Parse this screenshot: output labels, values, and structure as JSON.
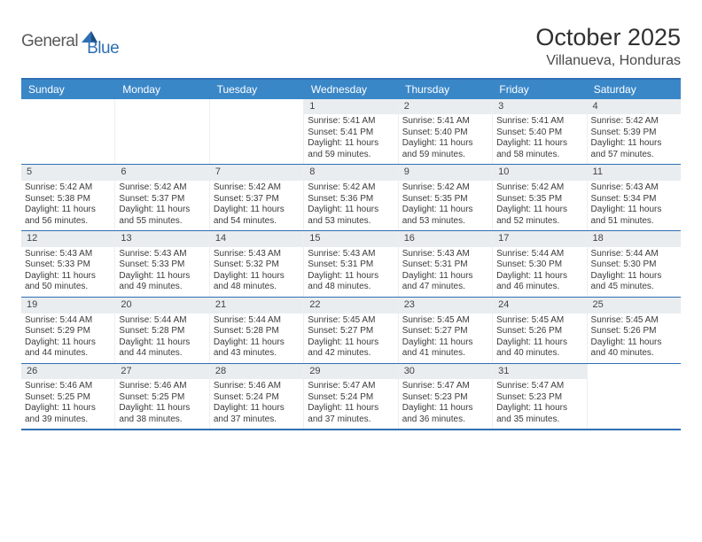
{
  "logo": {
    "general": "General",
    "blue": "Blue"
  },
  "title": "October 2025",
  "location": "Villanueva, Honduras",
  "colors": {
    "header_bar": "#3a87c8",
    "border": "#2f6fb3",
    "daynum_bg": "#e9edef",
    "text": "#3b3b3b",
    "title_text": "#303030"
  },
  "daysOfWeek": [
    "Sunday",
    "Monday",
    "Tuesday",
    "Wednesday",
    "Thursday",
    "Friday",
    "Saturday"
  ],
  "weeks": [
    [
      null,
      null,
      null,
      {
        "n": "1",
        "sunrise": "Sunrise: 5:41 AM",
        "sunset": "Sunset: 5:41 PM",
        "daylight": "Daylight: 11 hours and 59 minutes."
      },
      {
        "n": "2",
        "sunrise": "Sunrise: 5:41 AM",
        "sunset": "Sunset: 5:40 PM",
        "daylight": "Daylight: 11 hours and 59 minutes."
      },
      {
        "n": "3",
        "sunrise": "Sunrise: 5:41 AM",
        "sunset": "Sunset: 5:40 PM",
        "daylight": "Daylight: 11 hours and 58 minutes."
      },
      {
        "n": "4",
        "sunrise": "Sunrise: 5:42 AM",
        "sunset": "Sunset: 5:39 PM",
        "daylight": "Daylight: 11 hours and 57 minutes."
      }
    ],
    [
      {
        "n": "5",
        "sunrise": "Sunrise: 5:42 AM",
        "sunset": "Sunset: 5:38 PM",
        "daylight": "Daylight: 11 hours and 56 minutes."
      },
      {
        "n": "6",
        "sunrise": "Sunrise: 5:42 AM",
        "sunset": "Sunset: 5:37 PM",
        "daylight": "Daylight: 11 hours and 55 minutes."
      },
      {
        "n": "7",
        "sunrise": "Sunrise: 5:42 AM",
        "sunset": "Sunset: 5:37 PM",
        "daylight": "Daylight: 11 hours and 54 minutes."
      },
      {
        "n": "8",
        "sunrise": "Sunrise: 5:42 AM",
        "sunset": "Sunset: 5:36 PM",
        "daylight": "Daylight: 11 hours and 53 minutes."
      },
      {
        "n": "9",
        "sunrise": "Sunrise: 5:42 AM",
        "sunset": "Sunset: 5:35 PM",
        "daylight": "Daylight: 11 hours and 53 minutes."
      },
      {
        "n": "10",
        "sunrise": "Sunrise: 5:42 AM",
        "sunset": "Sunset: 5:35 PM",
        "daylight": "Daylight: 11 hours and 52 minutes."
      },
      {
        "n": "11",
        "sunrise": "Sunrise: 5:43 AM",
        "sunset": "Sunset: 5:34 PM",
        "daylight": "Daylight: 11 hours and 51 minutes."
      }
    ],
    [
      {
        "n": "12",
        "sunrise": "Sunrise: 5:43 AM",
        "sunset": "Sunset: 5:33 PM",
        "daylight": "Daylight: 11 hours and 50 minutes."
      },
      {
        "n": "13",
        "sunrise": "Sunrise: 5:43 AM",
        "sunset": "Sunset: 5:33 PM",
        "daylight": "Daylight: 11 hours and 49 minutes."
      },
      {
        "n": "14",
        "sunrise": "Sunrise: 5:43 AM",
        "sunset": "Sunset: 5:32 PM",
        "daylight": "Daylight: 11 hours and 48 minutes."
      },
      {
        "n": "15",
        "sunrise": "Sunrise: 5:43 AM",
        "sunset": "Sunset: 5:31 PM",
        "daylight": "Daylight: 11 hours and 48 minutes."
      },
      {
        "n": "16",
        "sunrise": "Sunrise: 5:43 AM",
        "sunset": "Sunset: 5:31 PM",
        "daylight": "Daylight: 11 hours and 47 minutes."
      },
      {
        "n": "17",
        "sunrise": "Sunrise: 5:44 AM",
        "sunset": "Sunset: 5:30 PM",
        "daylight": "Daylight: 11 hours and 46 minutes."
      },
      {
        "n": "18",
        "sunrise": "Sunrise: 5:44 AM",
        "sunset": "Sunset: 5:30 PM",
        "daylight": "Daylight: 11 hours and 45 minutes."
      }
    ],
    [
      {
        "n": "19",
        "sunrise": "Sunrise: 5:44 AM",
        "sunset": "Sunset: 5:29 PM",
        "daylight": "Daylight: 11 hours and 44 minutes."
      },
      {
        "n": "20",
        "sunrise": "Sunrise: 5:44 AM",
        "sunset": "Sunset: 5:28 PM",
        "daylight": "Daylight: 11 hours and 44 minutes."
      },
      {
        "n": "21",
        "sunrise": "Sunrise: 5:44 AM",
        "sunset": "Sunset: 5:28 PM",
        "daylight": "Daylight: 11 hours and 43 minutes."
      },
      {
        "n": "22",
        "sunrise": "Sunrise: 5:45 AM",
        "sunset": "Sunset: 5:27 PM",
        "daylight": "Daylight: 11 hours and 42 minutes."
      },
      {
        "n": "23",
        "sunrise": "Sunrise: 5:45 AM",
        "sunset": "Sunset: 5:27 PM",
        "daylight": "Daylight: 11 hours and 41 minutes."
      },
      {
        "n": "24",
        "sunrise": "Sunrise: 5:45 AM",
        "sunset": "Sunset: 5:26 PM",
        "daylight": "Daylight: 11 hours and 40 minutes."
      },
      {
        "n": "25",
        "sunrise": "Sunrise: 5:45 AM",
        "sunset": "Sunset: 5:26 PM",
        "daylight": "Daylight: 11 hours and 40 minutes."
      }
    ],
    [
      {
        "n": "26",
        "sunrise": "Sunrise: 5:46 AM",
        "sunset": "Sunset: 5:25 PM",
        "daylight": "Daylight: 11 hours and 39 minutes."
      },
      {
        "n": "27",
        "sunrise": "Sunrise: 5:46 AM",
        "sunset": "Sunset: 5:25 PM",
        "daylight": "Daylight: 11 hours and 38 minutes."
      },
      {
        "n": "28",
        "sunrise": "Sunrise: 5:46 AM",
        "sunset": "Sunset: 5:24 PM",
        "daylight": "Daylight: 11 hours and 37 minutes."
      },
      {
        "n": "29",
        "sunrise": "Sunrise: 5:47 AM",
        "sunset": "Sunset: 5:24 PM",
        "daylight": "Daylight: 11 hours and 37 minutes."
      },
      {
        "n": "30",
        "sunrise": "Sunrise: 5:47 AM",
        "sunset": "Sunset: 5:23 PM",
        "daylight": "Daylight: 11 hours and 36 minutes."
      },
      {
        "n": "31",
        "sunrise": "Sunrise: 5:47 AM",
        "sunset": "Sunset: 5:23 PM",
        "daylight": "Daylight: 11 hours and 35 minutes."
      },
      null
    ]
  ]
}
